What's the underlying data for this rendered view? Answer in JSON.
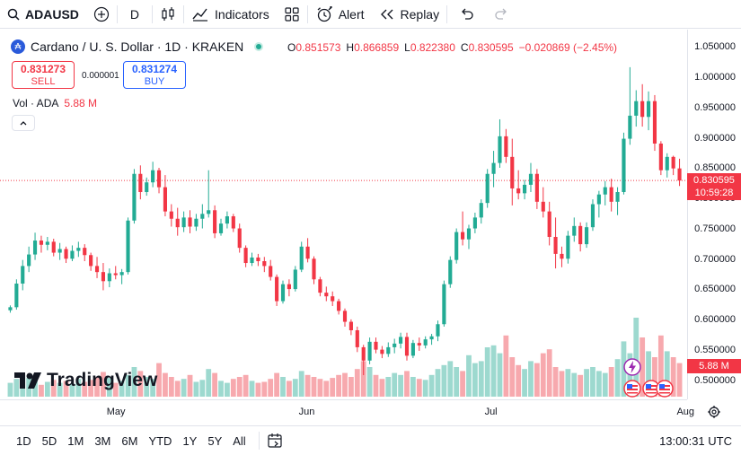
{
  "toolbar": {
    "symbol": "ADAUSD",
    "interval": "D",
    "indicators_label": "Indicators",
    "alert_label": "Alert",
    "replay_label": "Replay"
  },
  "legend": {
    "title": "Cardano / U. S. Dollar · 1D · KRAKEN",
    "coin_glyph": "₳",
    "open_lbl": "O",
    "open": "0.851573",
    "high_lbl": "H",
    "high": "0.866859",
    "low_lbl": "L",
    "low": "0.822380",
    "close_lbl": "C",
    "close": "0.830595",
    "change": "−0.020869 (−2.45%)"
  },
  "trade": {
    "sell_price": "0.831273",
    "sell_label": "SELL",
    "spread": "0.000001",
    "buy_price": "0.831274",
    "buy_label": "BUY"
  },
  "volume_legend": {
    "label": "Vol · ADA",
    "value": "5.88 M"
  },
  "last_price": {
    "price": "0.830595",
    "countdown": "10:59:28"
  },
  "volume_tag": "5.88 M",
  "logo_text": "TradingView",
  "range_buttons": [
    "1D",
    "5D",
    "1M",
    "3M",
    "6M",
    "YTD",
    "1Y",
    "5Y",
    "All"
  ],
  "clock": "13:00:31 UTC",
  "colors": {
    "up": "#22ab94",
    "down": "#f23645",
    "up_vol": "#9dd9cf",
    "down_vol": "#f7a9ae"
  },
  "chart_data": {
    "type": "candlestick",
    "ylim": [
      0.47,
      1.08
    ],
    "price_ticks": [
      "1.050000",
      "1.000000",
      "0.950000",
      "0.900000",
      "0.850000",
      "0.800000",
      "0.750000",
      "0.700000",
      "0.650000",
      "0.600000",
      "0.550000",
      "0.500000"
    ],
    "price_tick_values": [
      1.05,
      1.0,
      0.95,
      0.9,
      0.85,
      0.8,
      0.75,
      0.7,
      0.65,
      0.6,
      0.55,
      0.5
    ],
    "x_labels": [
      "May",
      "Jun",
      "Jul",
      "Aug"
    ],
    "x_label_day_index": [
      17,
      48,
      78,
      109
    ],
    "candles": [
      [
        0.617,
        0.625,
        0.613,
        0.622
      ],
      [
        0.622,
        0.668,
        0.618,
        0.661
      ],
      [
        0.661,
        0.7,
        0.65,
        0.69
      ],
      [
        0.69,
        0.722,
        0.68,
        0.709
      ],
      [
        0.709,
        0.745,
        0.7,
        0.732
      ],
      [
        0.732,
        0.74,
        0.712,
        0.725
      ],
      [
        0.725,
        0.738,
        0.716,
        0.73
      ],
      [
        0.73,
        0.735,
        0.706,
        0.712
      ],
      [
        0.712,
        0.728,
        0.7,
        0.718
      ],
      [
        0.718,
        0.722,
        0.695,
        0.702
      ],
      [
        0.702,
        0.724,
        0.698,
        0.715
      ],
      [
        0.715,
        0.73,
        0.705,
        0.72
      ],
      [
        0.72,
        0.726,
        0.698,
        0.708
      ],
      [
        0.708,
        0.712,
        0.682,
        0.69
      ],
      [
        0.69,
        0.705,
        0.67,
        0.68
      ],
      [
        0.68,
        0.695,
        0.65,
        0.665
      ],
      [
        0.665,
        0.686,
        0.655,
        0.678
      ],
      [
        0.678,
        0.69,
        0.668,
        0.675
      ],
      [
        0.675,
        0.685,
        0.66,
        0.68
      ],
      [
        0.68,
        0.77,
        0.676,
        0.765
      ],
      [
        0.765,
        0.85,
        0.76,
        0.842
      ],
      [
        0.842,
        0.856,
        0.8,
        0.812
      ],
      [
        0.812,
        0.836,
        0.806,
        0.828
      ],
      [
        0.828,
        0.862,
        0.82,
        0.848
      ],
      [
        0.848,
        0.852,
        0.81,
        0.82
      ],
      [
        0.82,
        0.84,
        0.772,
        0.78
      ],
      [
        0.78,
        0.792,
        0.755,
        0.768
      ],
      [
        0.768,
        0.786,
        0.74,
        0.754
      ],
      [
        0.754,
        0.78,
        0.746,
        0.77
      ],
      [
        0.77,
        0.782,
        0.744,
        0.755
      ],
      [
        0.755,
        0.776,
        0.748,
        0.768
      ],
      [
        0.768,
        0.792,
        0.752,
        0.776
      ],
      [
        0.776,
        0.848,
        0.77,
        0.782
      ],
      [
        0.782,
        0.79,
        0.736,
        0.744
      ],
      [
        0.744,
        0.768,
        0.74,
        0.76
      ],
      [
        0.76,
        0.78,
        0.752,
        0.772
      ],
      [
        0.772,
        0.776,
        0.746,
        0.752
      ],
      [
        0.752,
        0.76,
        0.712,
        0.72
      ],
      [
        0.72,
        0.724,
        0.688,
        0.695
      ],
      [
        0.695,
        0.712,
        0.69,
        0.704
      ],
      [
        0.704,
        0.71,
        0.69,
        0.698
      ],
      [
        0.698,
        0.705,
        0.68,
        0.69
      ],
      [
        0.69,
        0.7,
        0.666,
        0.672
      ],
      [
        0.672,
        0.676,
        0.624,
        0.632
      ],
      [
        0.632,
        0.666,
        0.628,
        0.66
      ],
      [
        0.66,
        0.668,
        0.64,
        0.652
      ],
      [
        0.652,
        0.69,
        0.648,
        0.684
      ],
      [
        0.684,
        0.73,
        0.68,
        0.722
      ],
      [
        0.722,
        0.736,
        0.696,
        0.702
      ],
      [
        0.702,
        0.706,
        0.66,
        0.668
      ],
      [
        0.668,
        0.672,
        0.64,
        0.646
      ],
      [
        0.646,
        0.656,
        0.632,
        0.64
      ],
      [
        0.64,
        0.648,
        0.624,
        0.632
      ],
      [
        0.632,
        0.636,
        0.61,
        0.616
      ],
      [
        0.616,
        0.62,
        0.59,
        0.598
      ],
      [
        0.598,
        0.602,
        0.576,
        0.584
      ],
      [
        0.584,
        0.59,
        0.548,
        0.556
      ],
      [
        0.556,
        0.56,
        0.51,
        0.534
      ],
      [
        0.534,
        0.572,
        0.528,
        0.565
      ],
      [
        0.565,
        0.572,
        0.546,
        0.552
      ],
      [
        0.552,
        0.558,
        0.538,
        0.545
      ],
      [
        0.545,
        0.564,
        0.54,
        0.556
      ],
      [
        0.556,
        0.57,
        0.546,
        0.562
      ],
      [
        0.562,
        0.58,
        0.554,
        0.573
      ],
      [
        0.573,
        0.58,
        0.534,
        0.542
      ],
      [
        0.542,
        0.568,
        0.538,
        0.563
      ],
      [
        0.563,
        0.572,
        0.55,
        0.559
      ],
      [
        0.559,
        0.574,
        0.554,
        0.569
      ],
      [
        0.569,
        0.578,
        0.56,
        0.574
      ],
      [
        0.574,
        0.6,
        0.566,
        0.594
      ],
      [
        0.594,
        0.666,
        0.59,
        0.66
      ],
      [
        0.66,
        0.706,
        0.654,
        0.7
      ],
      [
        0.7,
        0.752,
        0.694,
        0.746
      ],
      [
        0.746,
        0.78,
        0.724,
        0.734
      ],
      [
        0.734,
        0.758,
        0.718,
        0.752
      ],
      [
        0.752,
        0.778,
        0.744,
        0.77
      ],
      [
        0.77,
        0.8,
        0.76,
        0.794
      ],
      [
        0.794,
        0.85,
        0.786,
        0.842
      ],
      [
        0.842,
        0.88,
        0.82,
        0.86
      ],
      [
        0.86,
        0.932,
        0.852,
        0.904
      ],
      [
        0.904,
        0.916,
        0.86,
        0.87
      ],
      [
        0.87,
        0.9,
        0.79,
        0.818
      ],
      [
        0.818,
        0.848,
        0.8,
        0.81
      ],
      [
        0.81,
        0.832,
        0.8,
        0.824
      ],
      [
        0.824,
        0.86,
        0.812,
        0.842
      ],
      [
        0.842,
        0.85,
        0.784,
        0.796
      ],
      [
        0.796,
        0.82,
        0.77,
        0.78
      ],
      [
        0.78,
        0.796,
        0.724,
        0.738
      ],
      [
        0.738,
        0.77,
        0.686,
        0.71
      ],
      [
        0.71,
        0.722,
        0.688,
        0.702
      ],
      [
        0.702,
        0.748,
        0.694,
        0.74
      ],
      [
        0.74,
        0.77,
        0.73,
        0.756
      ],
      [
        0.756,
        0.762,
        0.714,
        0.726
      ],
      [
        0.726,
        0.762,
        0.72,
        0.754
      ],
      [
        0.754,
        0.8,
        0.748,
        0.792
      ],
      [
        0.792,
        0.814,
        0.77,
        0.808
      ],
      [
        0.808,
        0.83,
        0.79,
        0.82
      ],
      [
        0.82,
        0.834,
        0.78,
        0.796
      ],
      [
        0.796,
        0.82,
        0.774,
        0.812
      ],
      [
        0.812,
        0.91,
        0.808,
        0.9
      ],
      [
        0.9,
        1.018,
        0.89,
        0.938
      ],
      [
        0.938,
        0.98,
        0.92,
        0.962
      ],
      [
        0.962,
        0.99,
        0.92,
        0.936
      ],
      [
        0.936,
        0.978,
        0.914,
        0.962
      ],
      [
        0.962,
        0.972,
        0.88,
        0.892
      ],
      [
        0.892,
        0.896,
        0.84,
        0.848
      ],
      [
        0.848,
        0.876,
        0.836,
        0.87
      ],
      [
        0.87,
        0.872,
        0.84,
        0.851
      ],
      [
        0.851,
        0.867,
        0.822,
        0.831
      ]
    ],
    "volumes": [
      0.14,
      0.18,
      0.22,
      0.19,
      0.16,
      0.12,
      0.15,
      0.17,
      0.14,
      0.16,
      0.13,
      0.18,
      0.15,
      0.17,
      0.2,
      0.25,
      0.19,
      0.14,
      0.16,
      0.22,
      0.3,
      0.26,
      0.2,
      0.18,
      0.34,
      0.24,
      0.2,
      0.16,
      0.18,
      0.22,
      0.15,
      0.17,
      0.28,
      0.24,
      0.16,
      0.14,
      0.18,
      0.2,
      0.22,
      0.16,
      0.14,
      0.15,
      0.18,
      0.24,
      0.2,
      0.16,
      0.18,
      0.26,
      0.22,
      0.2,
      0.18,
      0.16,
      0.19,
      0.22,
      0.24,
      0.2,
      0.28,
      0.36,
      0.3,
      0.22,
      0.18,
      0.2,
      0.24,
      0.22,
      0.26,
      0.2,
      0.18,
      0.17,
      0.22,
      0.28,
      0.32,
      0.36,
      0.3,
      0.26,
      0.42,
      0.34,
      0.36,
      0.5,
      0.52,
      0.44,
      0.62,
      0.4,
      0.32,
      0.28,
      0.36,
      0.34,
      0.44,
      0.48,
      0.3,
      0.26,
      0.28,
      0.24,
      0.22,
      0.28,
      0.3,
      0.26,
      0.24,
      0.3,
      0.38,
      0.56,
      0.44,
      0.8,
      0.6,
      0.46,
      0.4,
      0.62,
      0.46,
      0.4,
      0.34
    ]
  }
}
